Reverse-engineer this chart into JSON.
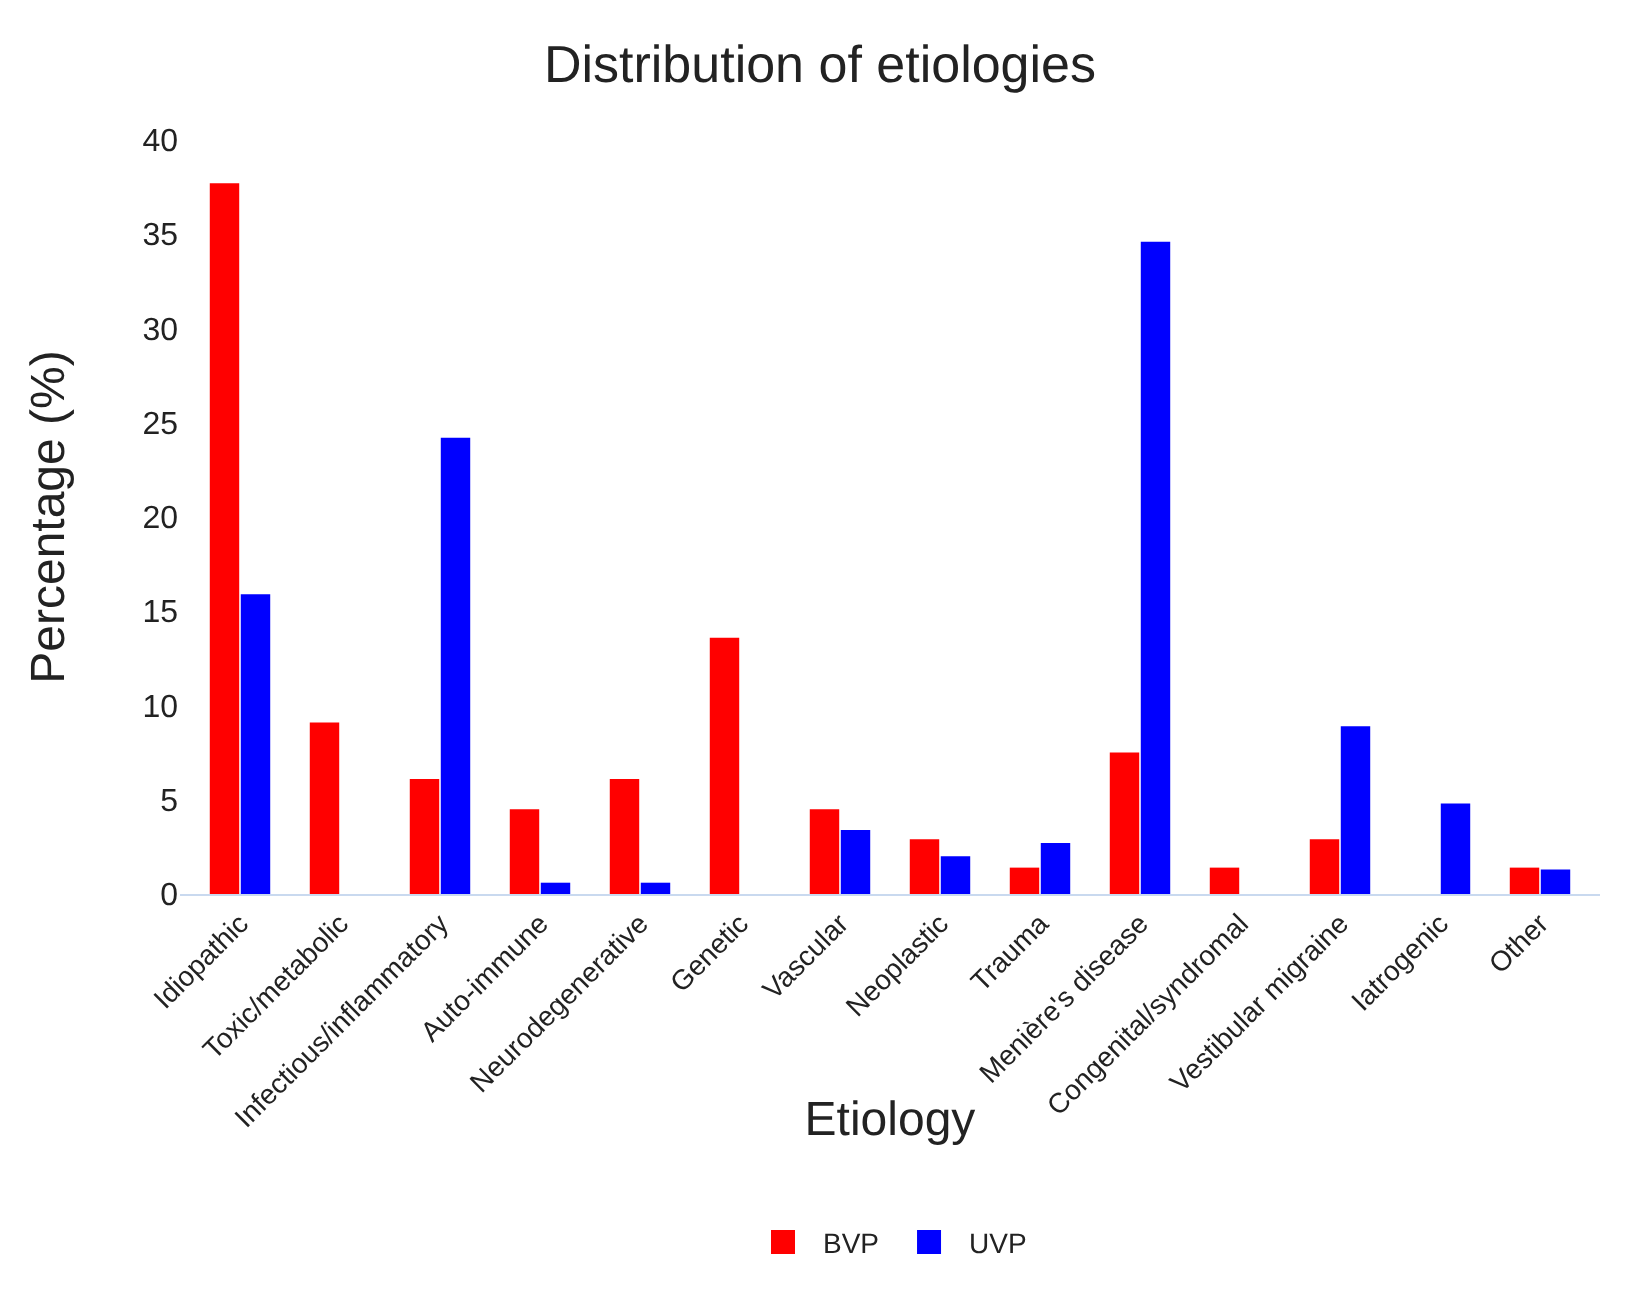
{
  "chart_data": {
    "type": "bar",
    "title": "Distribution of etiologies",
    "xlabel": "Etiology",
    "ylabel": "Percentage (%)",
    "categories": [
      "Idiopathic",
      "Toxic/metabolic",
      "Infectious/inflammatory",
      "Auto-immune",
      "Neurodegenerative",
      "Genetic",
      "Vascular",
      "Neoplastic",
      "Trauma",
      "Menière's disease",
      "Congenital/syndromal",
      "Vestibular migraine",
      "Iatrogenic",
      "Other"
    ],
    "series": [
      {
        "name": "BVP",
        "color": "#ff0000",
        "values": [
          37.7,
          9.1,
          6.1,
          4.5,
          6.1,
          13.6,
          4.5,
          2.9,
          1.4,
          7.5,
          1.4,
          2.9,
          null,
          1.4
        ]
      },
      {
        "name": "UVP",
        "color": "#0000ff",
        "values": [
          15.9,
          null,
          24.2,
          0.6,
          0.6,
          null,
          3.4,
          2.0,
          2.7,
          34.6,
          null,
          8.9,
          4.8,
          1.3
        ]
      }
    ],
    "ylim": [
      0,
      40
    ],
    "yticks": [
      0,
      5,
      10,
      15,
      20,
      25,
      30,
      35,
      40
    ],
    "grid": false,
    "legend": "bottom"
  }
}
